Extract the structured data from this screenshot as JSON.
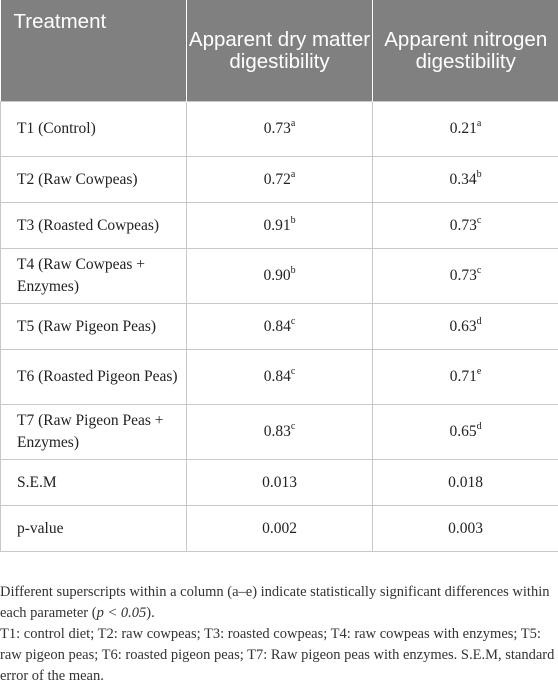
{
  "table": {
    "headers": [
      "Treatment",
      "Apparent dry matter digestibility",
      "Apparent nitrogen digestibility"
    ],
    "rows": [
      {
        "treatment": "T1 (Control)",
        "dm": "0.73",
        "dm_sup": "a",
        "n": "0.21",
        "n_sup": "a"
      },
      {
        "treatment": "T2 (Raw Cowpeas)",
        "dm": "0.72",
        "dm_sup": "a",
        "n": "0.34",
        "n_sup": "b"
      },
      {
        "treatment": "T3 (Roasted Cowpeas)",
        "dm": "0.91",
        "dm_sup": "b",
        "n": "0.73",
        "n_sup": "c"
      },
      {
        "treatment": "T4 (Raw Cowpeas + Enzymes)",
        "dm": "0.90",
        "dm_sup": "b",
        "n": "0.73",
        "n_sup": "c"
      },
      {
        "treatment": "T5 (Raw Pigeon Peas)",
        "dm": "0.84",
        "dm_sup": "c",
        "n": "0.63",
        "n_sup": "d"
      },
      {
        "treatment": "T6 (Roasted Pigeon Peas)",
        "dm": "0.84",
        "dm_sup": "c",
        "n": "0.71",
        "n_sup": "e"
      },
      {
        "treatment": "T7 (Raw Pigeon Peas + Enzymes)",
        "dm": "0.83",
        "dm_sup": "c",
        "n": "0.65",
        "n_sup": "d"
      },
      {
        "treatment": "S.E.M",
        "dm": "0.013",
        "dm_sup": "",
        "n": "0.018",
        "n_sup": ""
      },
      {
        "treatment": "p-value",
        "dm": "0.002",
        "dm_sup": "",
        "n": "0.003",
        "n_sup": ""
      }
    ]
  },
  "footnotes": {
    "line1_pre": "Different superscripts within a column (a–e) indicate statistically significant differences within each parameter (",
    "line1_italic": "p < 0.05",
    "line1_post": ").",
    "line2": "T1: control diet; T2: raw cowpeas; T3: roasted cowpeas; T4: raw cowpeas with enzymes; T5: raw pigeon peas; T6: roasted pigeon peas; T7: Raw pigeon peas with enzymes. S.E.M, standard error of the mean."
  }
}
